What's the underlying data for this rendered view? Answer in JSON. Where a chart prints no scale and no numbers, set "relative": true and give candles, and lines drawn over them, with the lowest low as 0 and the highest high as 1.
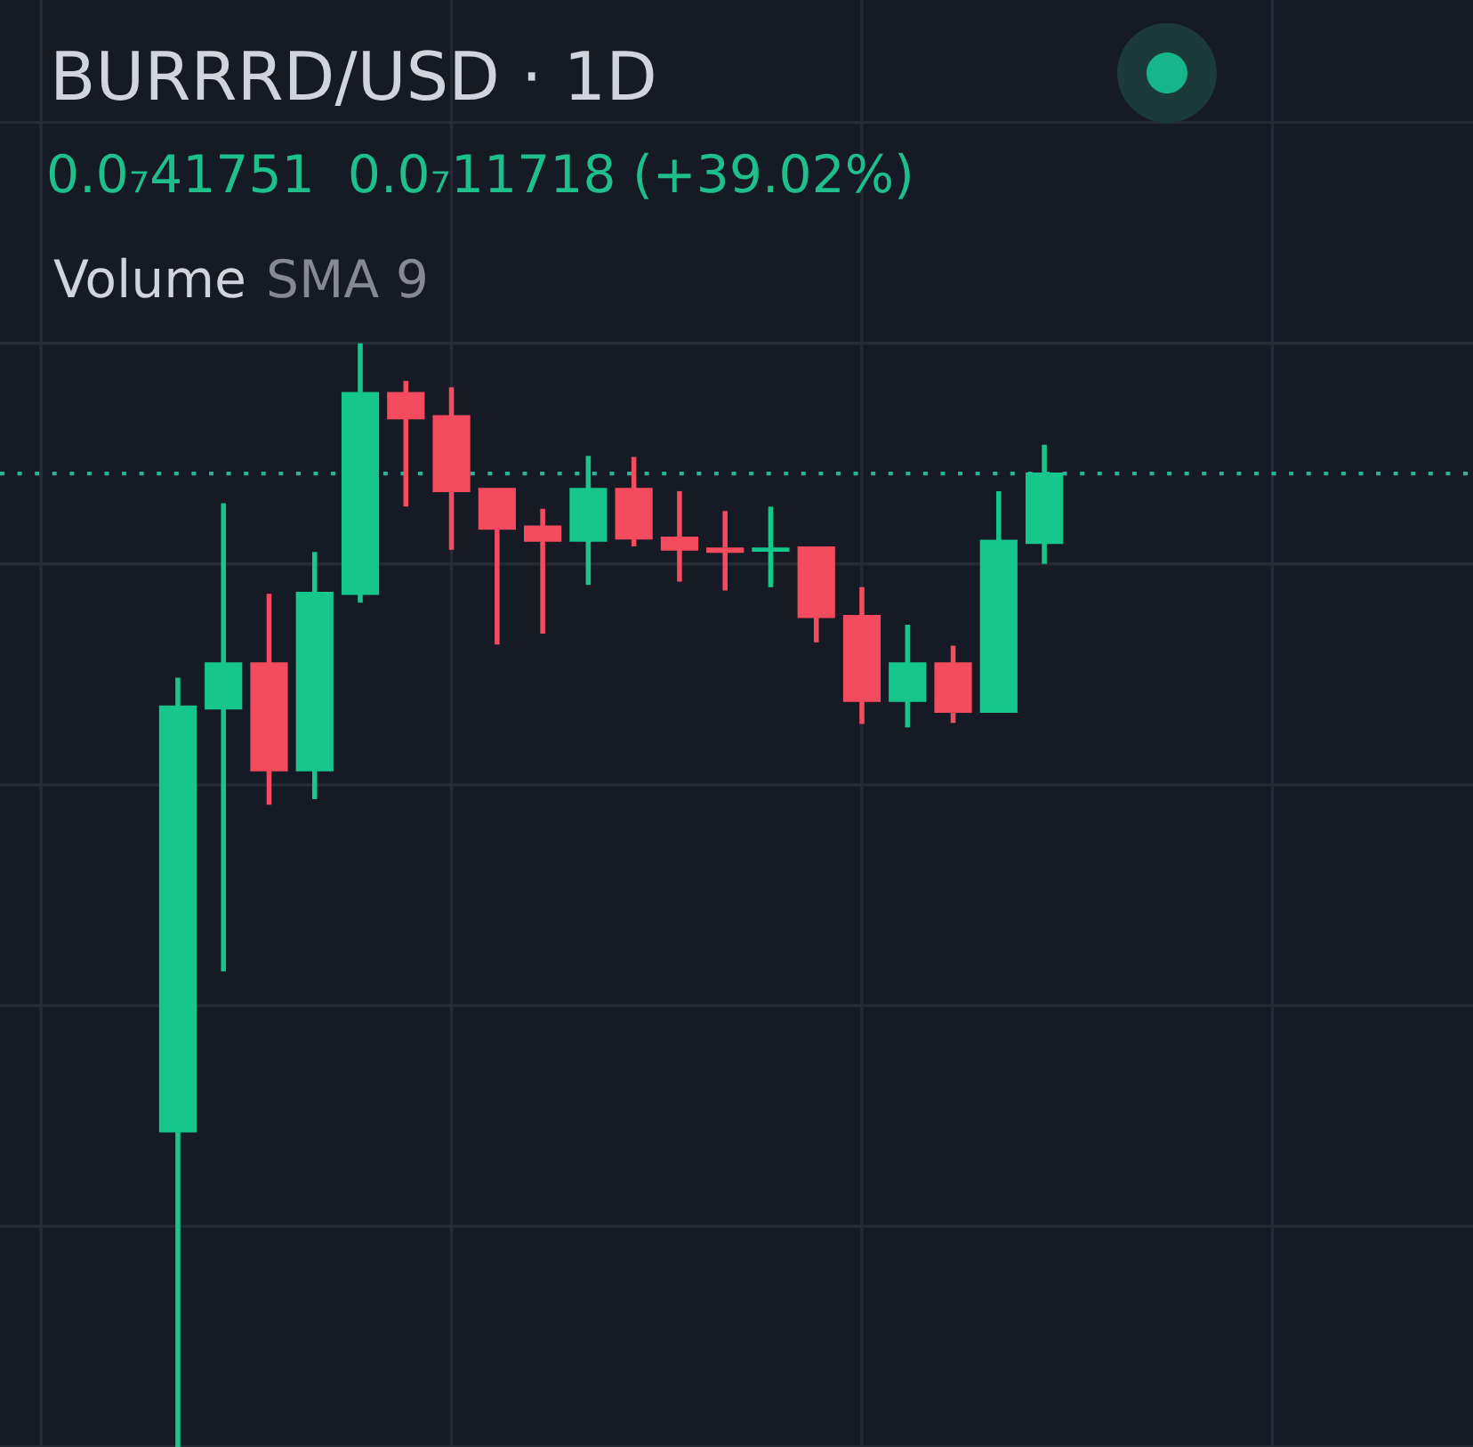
{
  "chart_data": {
    "type": "candlestick",
    "title": "BURRRD/USD · 1D",
    "subtitle": "0.0₇41751  0.0₇11718 (+39.02%)",
    "annotations": [
      "Volume",
      "SMA 9"
    ],
    "categories": [
      null,
      null,
      null,
      null,
      null,
      null,
      null,
      null,
      null,
      null,
      null,
      null,
      null,
      null,
      null,
      null,
      null,
      null,
      null,
      null
    ],
    "ohlc": [
      [
        0.286,
        0.697,
        0.0,
        0.671
      ],
      [
        0.669,
        0.855,
        0.431,
        0.71
      ],
      [
        0.71,
        0.773,
        0.582,
        0.613
      ],
      [
        0.613,
        0.811,
        0.587,
        0.774
      ],
      [
        0.773,
        1.0,
        0.765,
        0.955
      ],
      [
        0.955,
        0.966,
        0.852,
        0.932
      ],
      [
        0.934,
        0.96,
        0.813,
        0.866
      ],
      [
        0.868,
        0.868,
        0.727,
        0.832
      ],
      [
        0.834,
        0.85,
        0.737,
        0.821
      ],
      [
        0.821,
        0.898,
        0.781,
        0.868
      ],
      [
        0.868,
        0.897,
        0.816,
        0.823
      ],
      [
        0.824,
        0.866,
        0.784,
        0.813
      ],
      [
        0.814,
        0.848,
        0.776,
        0.811
      ],
      [
        0.812,
        0.852,
        0.779,
        0.814
      ],
      [
        0.815,
        0.816,
        0.729,
        0.752
      ],
      [
        0.753,
        0.779,
        0.655,
        0.676
      ],
      [
        0.676,
        0.745,
        0.652,
        0.71
      ],
      [
        0.71,
        0.726,
        0.656,
        0.666
      ],
      [
        0.666,
        0.866,
        0.666,
        0.821
      ],
      [
        0.819,
        0.908,
        0.8,
        0.882
      ]
    ],
    "colors": [
      "#16c68b",
      "#16c68b",
      "#f44b5e",
      "#16c68b",
      "#16c68b",
      "#f44b5e",
      "#f44b5e",
      "#f44b5e",
      "#f44b5e",
      "#16c68b",
      "#f44b5e",
      "#f44b5e",
      "#f44b5e",
      "#16c68b",
      "#f44b5e",
      "#f44b5e",
      "#16c68b",
      "#f44b5e",
      "#16c68b",
      "#16c68b"
    ],
    "relative": true,
    "grid": true,
    "tick_labels": false,
    "ref_lines": [
      {
        "axis": "y",
        "value": 0.882,
        "color": "#2bb39a",
        "line_style": "dotted"
      }
    ]
  }
}
